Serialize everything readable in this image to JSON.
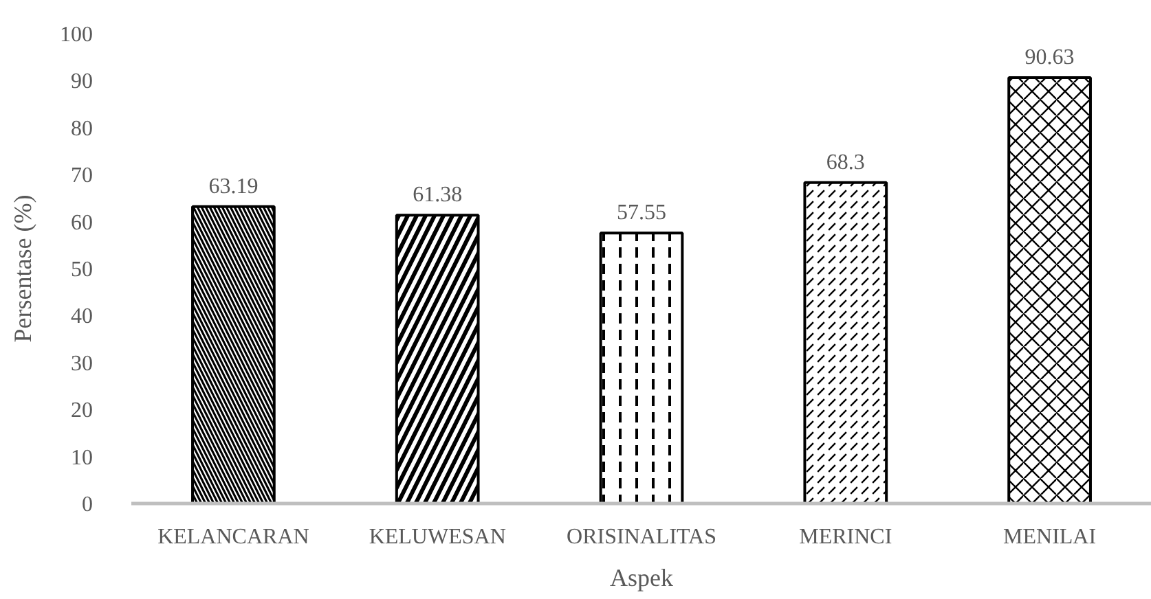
{
  "chart_data": {
    "type": "bar",
    "xlabel": "Aspek",
    "ylabel": "Persentase (%)",
    "categories": [
      "KELANCARAN",
      "KELUWESAN",
      "ORISINALITAS",
      "MERINCI",
      "MENILAI"
    ],
    "values": [
      63.19,
      61.38,
      57.55,
      68.3,
      90.63
    ],
    "color": "#000000",
    "ylim": [
      0,
      100
    ],
    "yticks": [
      0,
      10,
      20,
      30,
      40,
      50,
      60,
      70,
      80,
      90,
      100
    ],
    "data_labels": true
  }
}
